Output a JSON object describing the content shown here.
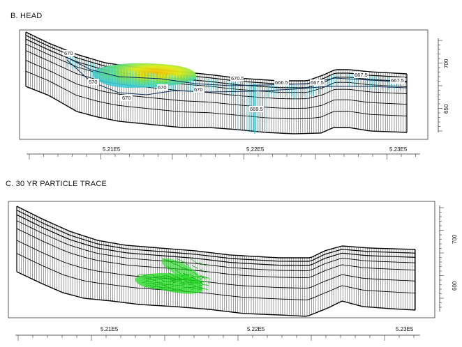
{
  "panel_b": {
    "title": "B. HEAD",
    "x_ticks": [
      "5.21E5",
      "5.22E5",
      "5.23E5"
    ],
    "y_ticks": [
      "700",
      "650"
    ],
    "contour_labels": [
      "670",
      "670",
      "670",
      "670",
      "670",
      "670.5",
      "666.5",
      "667.5",
      "667.5",
      "667.5",
      "669.5"
    ]
  },
  "panel_c": {
    "title": "C. 30 YR PARTICLE TRACE",
    "x_ticks": [
      "5.21E5",
      "5.22E5",
      "5.23E5"
    ],
    "y_ticks": [
      "700",
      "600"
    ]
  },
  "colors": {
    "grid": "#111111",
    "head_cyan": "#35c9d6",
    "head_hot": "#f5c400",
    "particle": "#22dd22"
  }
}
